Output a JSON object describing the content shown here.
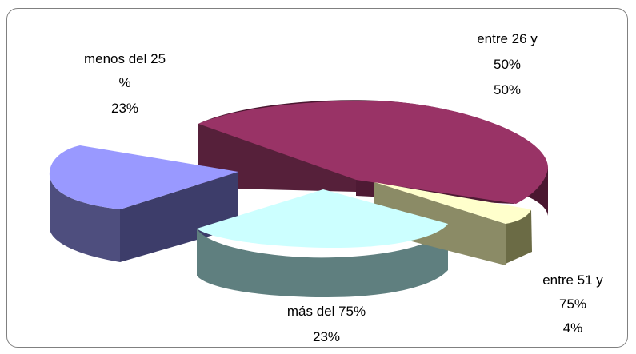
{
  "chart_data": {
    "type": "pie",
    "title": "",
    "slices": [
      {
        "name": "entre 26 y 50%",
        "value": 50,
        "label_lines": [
          "entre 26 y",
          "50%",
          "50%"
        ],
        "color": "#993366"
      },
      {
        "name": "entre 51 y 75%",
        "value": 4,
        "label_lines": [
          "entre 51 y",
          "75%",
          "4%"
        ],
        "color": "#ffffcc"
      },
      {
        "name": "más del 75%",
        "value": 23,
        "label_lines": [
          "más del 75%",
          "23%"
        ],
        "color": "#ccffff"
      },
      {
        "name": "menos del 25 %",
        "value": 23,
        "label_lines": [
          "menos del 25",
          "%",
          "23%"
        ],
        "color": "#9999ff"
      }
    ],
    "legend": "none",
    "style": "3d-exploded"
  }
}
